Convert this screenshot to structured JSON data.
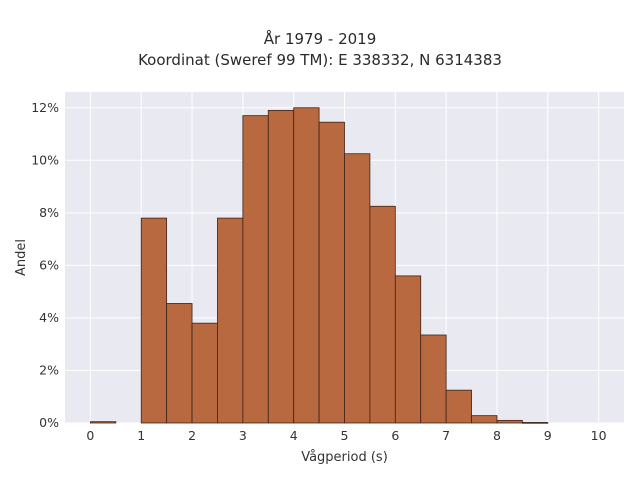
{
  "chart_data": {
    "type": "bar",
    "title": "År 1979 - 2019",
    "subtitle": "Koordinat (Sweref 99 TM): E 338332, N 6314383",
    "xlabel": "Vågperiod (s)",
    "ylabel": "Andel",
    "bin_width": 0.5,
    "bins": [
      0,
      0.5,
      1,
      1.5,
      2,
      2.5,
      3,
      3.5,
      4,
      4.5,
      5,
      5.5,
      6,
      6.5,
      7,
      7.5,
      8,
      8.5,
      9,
      9.5
    ],
    "values": [
      0.05,
      0,
      7.8,
      4.55,
      3.8,
      7.8,
      11.7,
      11.9,
      12.0,
      11.45,
      10.25,
      8.25,
      5.6,
      3.35,
      1.25,
      0.28,
      0.1,
      0.02,
      0,
      0
    ],
    "xlim": [
      -0.5,
      10.5
    ],
    "ylim": [
      0,
      12.6
    ],
    "x_ticks": [
      0,
      1,
      2,
      3,
      4,
      5,
      6,
      7,
      8,
      9,
      10
    ],
    "y_ticks": [
      0,
      2,
      4,
      6,
      8,
      10,
      12
    ],
    "y_tick_suffix": "%",
    "grid": true,
    "colors": {
      "bar_fill": "#b8693f",
      "bar_edge": "#3d2418",
      "plot_bg": "#e9e9f1",
      "grid": "#ffffff"
    }
  }
}
